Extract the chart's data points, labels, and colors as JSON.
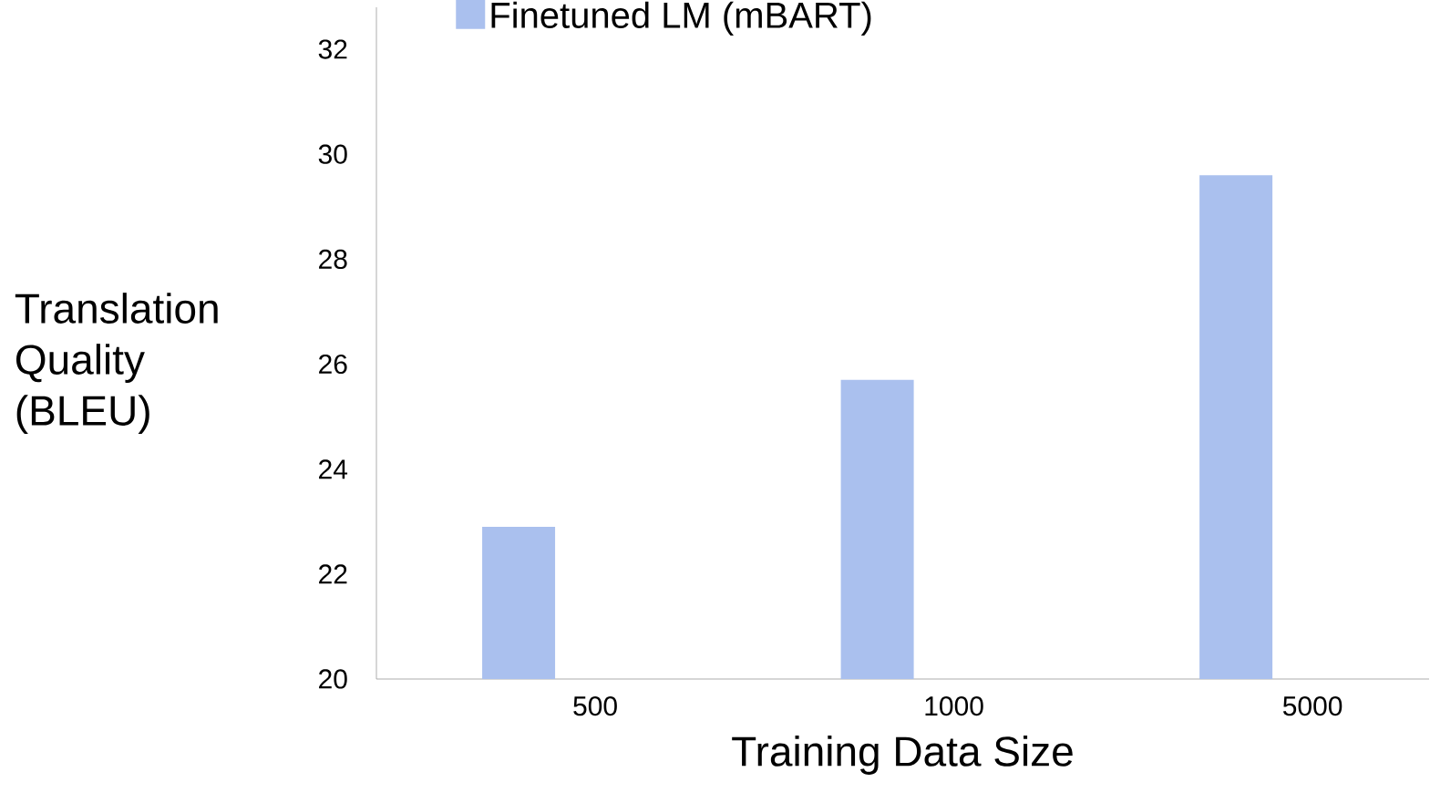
{
  "chart_data": {
    "type": "bar",
    "xlabel": "Training Data Size",
    "ylabel": "Translation Quality (BLEU)",
    "categories": [
      "500",
      "1000",
      "5000"
    ],
    "series": [
      {
        "name": "Finetuned LM (mBART)",
        "color": "#aac0ee",
        "values": [
          22.9,
          25.7,
          29.6
        ]
      }
    ],
    "ylim": [
      20,
      32.8
    ],
    "yticks": [
      20,
      22,
      24,
      26,
      28,
      30,
      32
    ],
    "grid": false,
    "legend": "top left"
  }
}
